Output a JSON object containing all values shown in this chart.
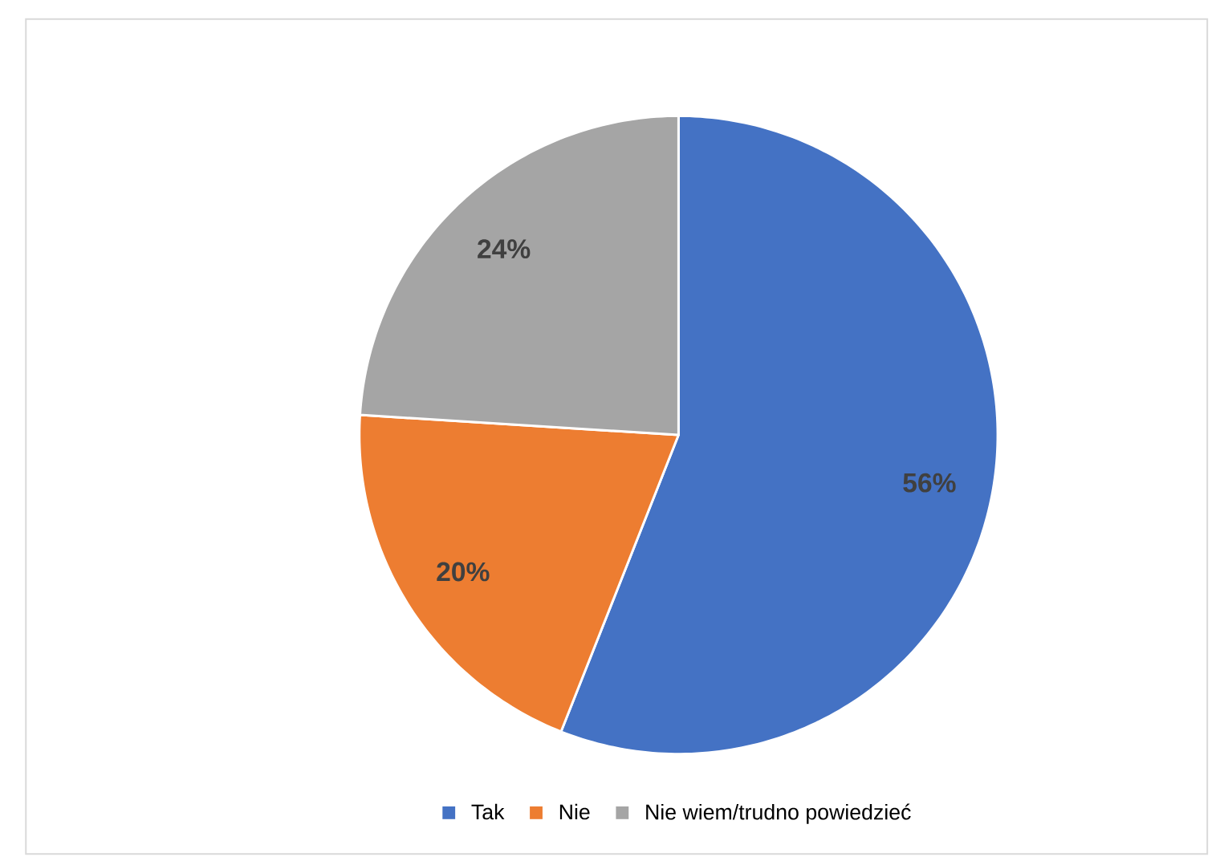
{
  "chart_data": {
    "type": "pie",
    "categories": [
      "Tak",
      "Nie",
      "Nie wiem/trudno powiedzieć"
    ],
    "values": [
      56,
      20,
      24
    ],
    "colors": [
      "#4472c4",
      "#ed7d31",
      "#a5a5a5"
    ],
    "value_labels": [
      "56%",
      "20%",
      "24%"
    ],
    "legend": "bottom"
  }
}
